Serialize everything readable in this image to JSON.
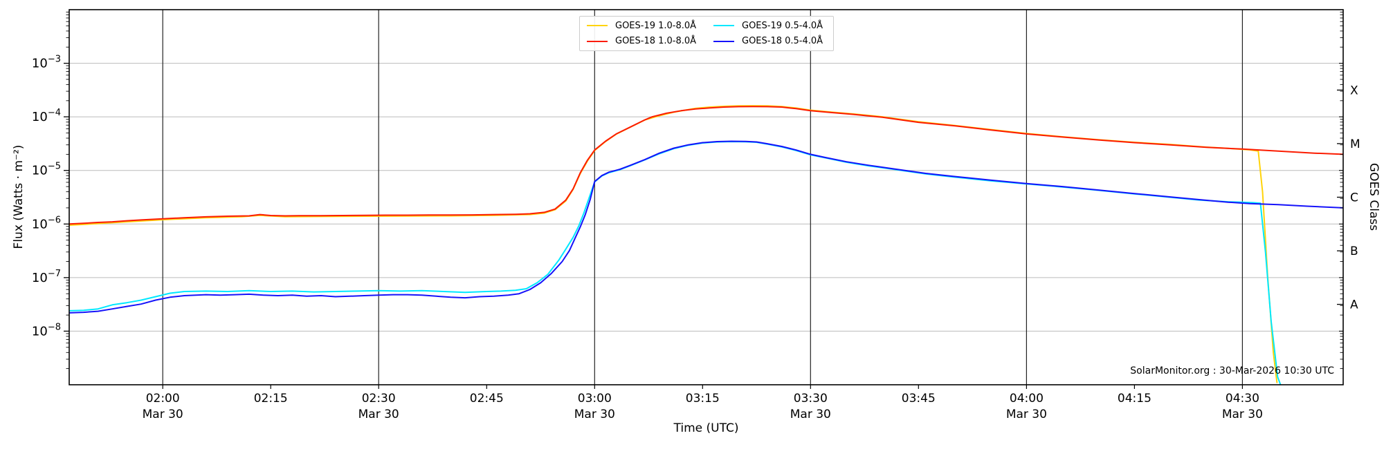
{
  "chart_data": {
    "type": "line",
    "xlabel": "Time (UTC)",
    "ylabel": "Flux (Watts · m⁻²)",
    "ylabel_right": "GOES Class",
    "annotation": "SolarMonitor.org : 30-Mar-2026 10:30 UTC",
    "x_range": [
      107,
      284
    ],
    "y_log_range": [
      -9,
      -2
    ],
    "y_tick_exponents": [
      -8,
      -7,
      -6,
      -5,
      -4,
      -3
    ],
    "x_ticks": [
      {
        "t": 120,
        "label": "02:00",
        "date": "Mar 30",
        "grid": true
      },
      {
        "t": 135,
        "label": "02:15"
      },
      {
        "t": 150,
        "label": "02:30",
        "date": "Mar 30",
        "grid": true
      },
      {
        "t": 165,
        "label": "02:45"
      },
      {
        "t": 180,
        "label": "03:00",
        "date": "Mar 30",
        "grid": true
      },
      {
        "t": 195,
        "label": "03:15"
      },
      {
        "t": 210,
        "label": "03:30",
        "date": "Mar 30",
        "grid": true
      },
      {
        "t": 225,
        "label": "03:45"
      },
      {
        "t": 240,
        "label": "04:00",
        "date": "Mar 30",
        "grid": true
      },
      {
        "t": 255,
        "label": "04:15"
      },
      {
        "t": 270,
        "label": "04:30",
        "date": "Mar 30",
        "grid": true
      }
    ],
    "right_axis": {
      "classes": [
        {
          "label": "A",
          "v": 3.162e-08
        },
        {
          "label": "B",
          "v": 3.162e-07
        },
        {
          "label": "C",
          "v": 3.162e-06
        },
        {
          "label": "M",
          "v": 3.162e-05
        },
        {
          "label": "X",
          "v": 0.0003162
        }
      ]
    },
    "colors": {
      "grid_h": "#bbbbbb",
      "grid_v": "#222222",
      "spine": "#000000",
      "background": "#ffffff"
    },
    "legend_position": "top-center",
    "series": [
      {
        "name": "GOES-19 1.0-8.0Å",
        "color": "#ffd30a",
        "points": [
          [
            107,
            9.5e-07
          ],
          [
            110,
            1e-06
          ],
          [
            115,
            1.1e-06
          ],
          [
            120,
            1.2e-06
          ],
          [
            126,
            1.31e-06
          ],
          [
            131,
            1.37e-06
          ],
          [
            133.5,
            1.45e-06
          ],
          [
            137,
            1.37e-06
          ],
          [
            142,
            1.38e-06
          ],
          [
            148,
            1.4e-06
          ],
          [
            154,
            1.41e-06
          ],
          [
            160,
            1.42e-06
          ],
          [
            166,
            1.45e-06
          ],
          [
            171,
            1.5e-06
          ],
          [
            173,
            1.6e-06
          ],
          [
            174.5,
            1.85e-06
          ],
          [
            176,
            2.7e-06
          ],
          [
            177,
            4.4e-06
          ],
          [
            178,
            8.7e-06
          ],
          [
            179,
            1.5e-05
          ],
          [
            180,
            2.35e-05
          ],
          [
            181.5,
            3.45e-05
          ],
          [
            183,
            4.75e-05
          ],
          [
            185,
            6.45e-05
          ],
          [
            187,
            8.75e-05
          ],
          [
            189,
            0.000105
          ],
          [
            191,
            0.000122
          ],
          [
            194,
            0.000144
          ],
          [
            196,
            0.000152
          ],
          [
            198,
            0.000157
          ],
          [
            200,
            0.00016
          ],
          [
            202,
            0.000161
          ],
          [
            204,
            0.00016
          ],
          [
            206,
            0.000156
          ],
          [
            208,
            0.000146
          ],
          [
            210,
            0.000133
          ],
          [
            213,
            0.000122
          ],
          [
            216,
            0.000113
          ],
          [
            220,
            0.0001
          ],
          [
            225,
            8.1e-05
          ],
          [
            230,
            6.9e-05
          ],
          [
            235,
            5.8e-05
          ],
          [
            240,
            4.9e-05
          ],
          [
            245,
            4.25e-05
          ],
          [
            250,
            3.75e-05
          ],
          [
            255,
            3.35e-05
          ],
          [
            260,
            3.05e-05
          ],
          [
            265,
            2.72e-05
          ],
          [
            268,
            2.58e-05
          ],
          [
            270,
            2.47e-05
          ],
          [
            271,
            2.42e-05
          ],
          [
            272.2,
            2.3e-05
          ],
          [
            272.8,
            4e-06
          ],
          [
            273.5,
            1.1e-07
          ],
          [
            274.3,
            4e-09
          ],
          [
            274.8,
            1.1e-09
          ]
        ]
      },
      {
        "name": "GOES-18 1.0-8.0Å",
        "color": "#fb1b00",
        "points": [
          [
            107,
            1e-06
          ],
          [
            109,
            1.03e-06
          ],
          [
            111,
            1.07e-06
          ],
          [
            113,
            1.1e-06
          ],
          [
            115,
            1.15e-06
          ],
          [
            117,
            1.19e-06
          ],
          [
            120,
            1.25e-06
          ],
          [
            123,
            1.31e-06
          ],
          [
            126,
            1.36e-06
          ],
          [
            129,
            1.4e-06
          ],
          [
            132,
            1.42e-06
          ],
          [
            133.5,
            1.5e-06
          ],
          [
            135,
            1.44e-06
          ],
          [
            137,
            1.42e-06
          ],
          [
            139,
            1.43e-06
          ],
          [
            142,
            1.43e-06
          ],
          [
            145,
            1.44e-06
          ],
          [
            148,
            1.45e-06
          ],
          [
            151,
            1.46e-06
          ],
          [
            154,
            1.46e-06
          ],
          [
            157,
            1.47e-06
          ],
          [
            160,
            1.47e-06
          ],
          [
            163,
            1.48e-06
          ],
          [
            166,
            1.5e-06
          ],
          [
            169,
            1.52e-06
          ],
          [
            171,
            1.55e-06
          ],
          [
            173,
            1.65e-06
          ],
          [
            174.5,
            1.9e-06
          ],
          [
            176,
            2.8e-06
          ],
          [
            177,
            4.5e-06
          ],
          [
            178,
            9e-06
          ],
          [
            179,
            1.55e-05
          ],
          [
            180,
            2.4e-05
          ],
          [
            181.5,
            3.5e-05
          ],
          [
            183,
            4.8e-05
          ],
          [
            185,
            6.5e-05
          ],
          [
            187,
            8.8e-05
          ],
          [
            188,
            0.0001
          ],
          [
            190,
            0.000117
          ],
          [
            192,
            0.00013
          ],
          [
            194,
            0.00014
          ],
          [
            196,
            0.000147
          ],
          [
            198,
            0.000152
          ],
          [
            200,
            0.000155
          ],
          [
            202,
            0.000156
          ],
          [
            204,
            0.000155
          ],
          [
            206,
            0.000152
          ],
          [
            208,
            0.000142
          ],
          [
            210,
            0.00013
          ],
          [
            213,
            0.00012
          ],
          [
            216,
            0.000111
          ],
          [
            220,
            9.8e-05
          ],
          [
            225,
            7.9e-05
          ],
          [
            230,
            6.8e-05
          ],
          [
            235,
            5.7e-05
          ],
          [
            240,
            4.8e-05
          ],
          [
            245,
            4.2e-05
          ],
          [
            250,
            3.7e-05
          ],
          [
            255,
            3.3e-05
          ],
          [
            260,
            3e-05
          ],
          [
            265,
            2.7e-05
          ],
          [
            270,
            2.5e-05
          ],
          [
            275,
            2.3e-05
          ],
          [
            280,
            2.1e-05
          ],
          [
            284,
            2e-05
          ]
        ]
      },
      {
        "name": "GOES-19 0.5-4.0Å",
        "color": "#00e8ff",
        "points": [
          [
            107,
            2.4e-08
          ],
          [
            109,
            2.45e-08
          ],
          [
            111,
            2.6e-08
          ],
          [
            113,
            3.1e-08
          ],
          [
            115,
            3.4e-08
          ],
          [
            117,
            3.8e-08
          ],
          [
            119,
            4.4e-08
          ],
          [
            121,
            5.1e-08
          ],
          [
            123,
            5.5e-08
          ],
          [
            126,
            5.6e-08
          ],
          [
            129,
            5.5e-08
          ],
          [
            132,
            5.7e-08
          ],
          [
            135,
            5.5e-08
          ],
          [
            138,
            5.6e-08
          ],
          [
            141,
            5.4e-08
          ],
          [
            144,
            5.5e-08
          ],
          [
            147,
            5.6e-08
          ],
          [
            150,
            5.7e-08
          ],
          [
            153,
            5.6e-08
          ],
          [
            156,
            5.7e-08
          ],
          [
            159,
            5.5e-08
          ],
          [
            162,
            5.3e-08
          ],
          [
            165,
            5.5e-08
          ],
          [
            167,
            5.6e-08
          ],
          [
            169,
            5.8e-08
          ],
          [
            170.5,
            6.2e-08
          ],
          [
            172,
            8e-08
          ],
          [
            173.5,
            1.15e-07
          ],
          [
            175,
            2.1e-07
          ],
          [
            176,
            3.4e-07
          ],
          [
            177,
            5.6e-07
          ],
          [
            177.8,
            9.2e-07
          ],
          [
            178.5,
            1.6e-06
          ],
          [
            179.2,
            3e-06
          ],
          [
            180,
            6.1e-06
          ],
          [
            181,
            7.9e-06
          ],
          [
            182,
            9.1e-06
          ],
          [
            183.5,
            1.03e-05
          ],
          [
            185,
            1.23e-05
          ],
          [
            187,
            1.58e-05
          ],
          [
            189,
            2.05e-05
          ],
          [
            191,
            2.55e-05
          ],
          [
            193,
            2.95e-05
          ],
          [
            195,
            3.25e-05
          ],
          [
            197,
            3.4e-05
          ],
          [
            199,
            3.45e-05
          ],
          [
            201,
            3.43e-05
          ],
          [
            202.5,
            3.35e-05
          ],
          [
            204,
            3.1e-05
          ],
          [
            206,
            2.75e-05
          ],
          [
            208,
            2.35e-05
          ],
          [
            210,
            1.95e-05
          ],
          [
            212,
            1.72e-05
          ],
          [
            215,
            1.42e-05
          ],
          [
            218,
            1.22e-05
          ],
          [
            222,
            1.03e-05
          ],
          [
            226,
            8.6e-06
          ],
          [
            230,
            7.5e-06
          ],
          [
            235,
            6.4e-06
          ],
          [
            240,
            5.6e-06
          ],
          [
            245,
            4.9e-06
          ],
          [
            250,
            4.25e-06
          ],
          [
            255,
            3.65e-06
          ],
          [
            260,
            3.15e-06
          ],
          [
            264,
            2.8e-06
          ],
          [
            268,
            2.6e-06
          ],
          [
            270,
            2.55e-06
          ],
          [
            271.5,
            2.5e-06
          ],
          [
            272.5,
            2.45e-06
          ],
          [
            273.2,
            3e-07
          ],
          [
            274,
            1.5e-08
          ],
          [
            274.9,
            1.4e-09
          ],
          [
            275.3,
            1e-09
          ]
        ]
      },
      {
        "name": "GOES-18 0.5-4.0Å",
        "color": "#1512fa",
        "points": [
          [
            107,
            2.2e-08
          ],
          [
            109,
            2.25e-08
          ],
          [
            111,
            2.35e-08
          ],
          [
            113,
            2.6e-08
          ],
          [
            115,
            2.9e-08
          ],
          [
            117,
            3.2e-08
          ],
          [
            119,
            3.8e-08
          ],
          [
            121,
            4.3e-08
          ],
          [
            123,
            4.6e-08
          ],
          [
            126,
            4.8e-08
          ],
          [
            128,
            4.7e-08
          ],
          [
            130,
            4.8e-08
          ],
          [
            132,
            4.9e-08
          ],
          [
            134,
            4.7e-08
          ],
          [
            136,
            4.6e-08
          ],
          [
            138,
            4.7e-08
          ],
          [
            140,
            4.5e-08
          ],
          [
            142,
            4.6e-08
          ],
          [
            144,
            4.4e-08
          ],
          [
            146,
            4.5e-08
          ],
          [
            148,
            4.6e-08
          ],
          [
            150,
            4.7e-08
          ],
          [
            152,
            4.8e-08
          ],
          [
            154,
            4.8e-08
          ],
          [
            156,
            4.7e-08
          ],
          [
            158,
            4.5e-08
          ],
          [
            160,
            4.3e-08
          ],
          [
            162,
            4.2e-08
          ],
          [
            164,
            4.4e-08
          ],
          [
            166,
            4.5e-08
          ],
          [
            168,
            4.7e-08
          ],
          [
            169.5,
            5e-08
          ],
          [
            171,
            6e-08
          ],
          [
            172.5,
            8e-08
          ],
          [
            174,
            1.2e-07
          ],
          [
            175.5,
            2e-07
          ],
          [
            176.5,
            3.2e-07
          ],
          [
            177.3,
            5.5e-07
          ],
          [
            178,
            8.8e-07
          ],
          [
            178.7,
            1.5e-06
          ],
          [
            179.4,
            2.9e-06
          ],
          [
            180,
            6.2e-06
          ],
          [
            181,
            8e-06
          ],
          [
            182,
            9.3e-06
          ],
          [
            183.5,
            1.05e-05
          ],
          [
            185,
            1.25e-05
          ],
          [
            187,
            1.6e-05
          ],
          [
            189,
            2.1e-05
          ],
          [
            191,
            2.6e-05
          ],
          [
            193,
            3e-05
          ],
          [
            195,
            3.3e-05
          ],
          [
            197,
            3.45e-05
          ],
          [
            199,
            3.5e-05
          ],
          [
            201,
            3.48e-05
          ],
          [
            202.5,
            3.4e-05
          ],
          [
            204,
            3.15e-05
          ],
          [
            206,
            2.8e-05
          ],
          [
            208,
            2.4e-05
          ],
          [
            210,
            2e-05
          ],
          [
            212,
            1.75e-05
          ],
          [
            215,
            1.45e-05
          ],
          [
            218,
            1.25e-05
          ],
          [
            222,
            1.05e-05
          ],
          [
            226,
            8.8e-06
          ],
          [
            230,
            7.7e-06
          ],
          [
            235,
            6.6e-06
          ],
          [
            240,
            5.7e-06
          ],
          [
            245,
            5e-06
          ],
          [
            250,
            4.3e-06
          ],
          [
            255,
            3.7e-06
          ],
          [
            260,
            3.2e-06
          ],
          [
            264,
            2.85e-06
          ],
          [
            268,
            2.55e-06
          ],
          [
            271,
            2.4e-06
          ],
          [
            275,
            2.3e-06
          ],
          [
            279,
            2.15e-06
          ],
          [
            284,
            2e-06
          ]
        ]
      }
    ]
  }
}
